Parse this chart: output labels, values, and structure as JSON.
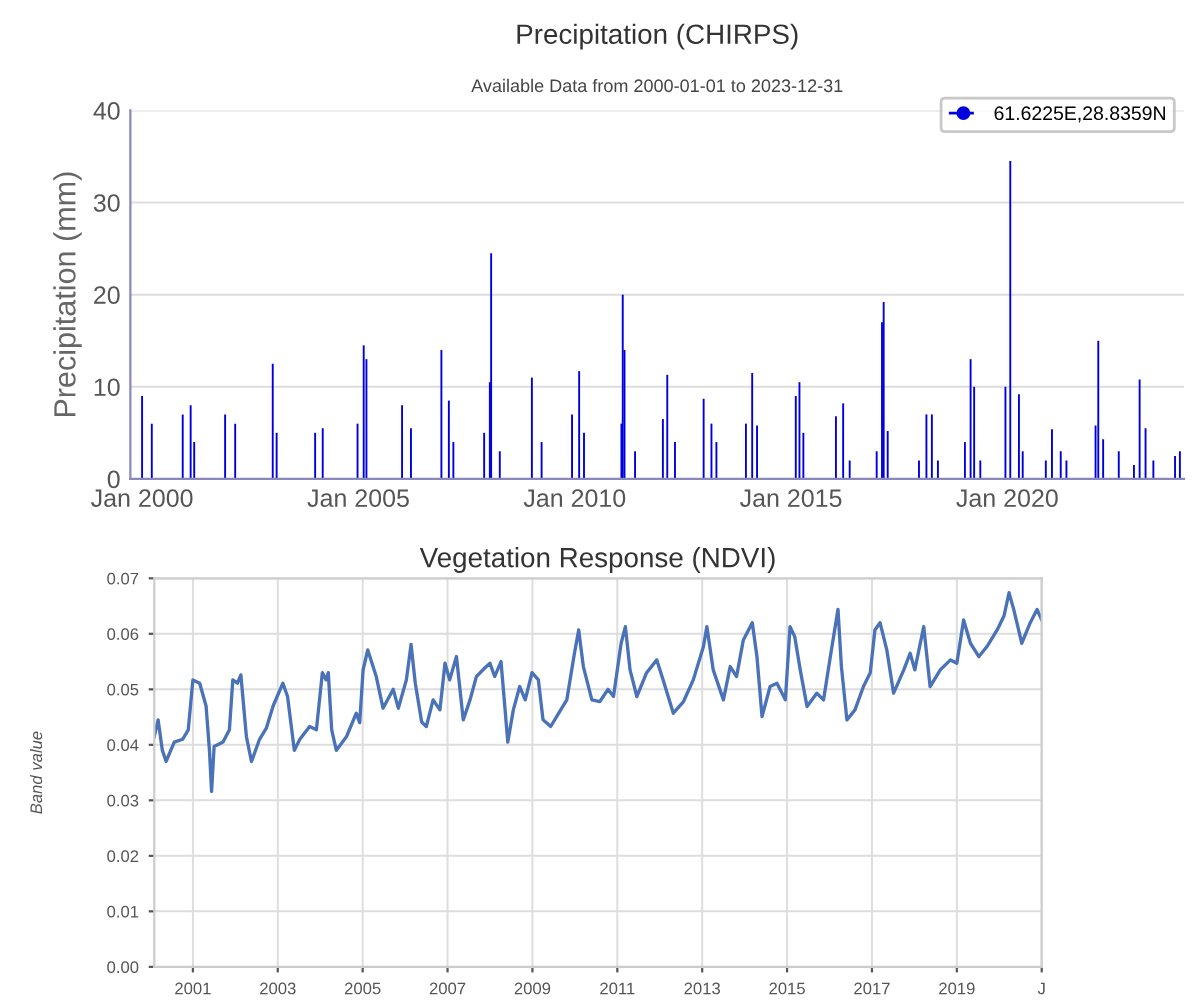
{
  "chart_data": [
    {
      "type": "bar",
      "title": "Precipitation (CHIRPS)",
      "subtitle": "Available Data from 2000-01-01 to 2023-12-31",
      "ylabel": "Precipitation (mm)",
      "x": [
        "2000-01-01",
        "2000-03-23",
        "2000-12-09",
        "2001-02-14",
        "2001-03-16",
        "2001-12-02",
        "2002-02-25",
        "2003-01-08",
        "2003-02-10",
        "2004-01-01",
        "2004-03-05",
        "2004-12-24",
        "2005-02-14",
        "2005-03-09",
        "2006-01-04",
        "2006-03-20",
        "2006-12-02",
        "2007-02-03",
        "2007-03-13",
        "2007-11-28",
        "2008-01-15",
        "2008-01-26",
        "2008-04-08",
        "2009-01-04",
        "2009-03-27",
        "2009-12-09",
        "2010-02-07",
        "2010-03-20",
        "2011-01-30",
        "2011-02-10",
        "2011-02-25",
        "2011-05-25",
        "2012-01-15",
        "2012-02-21",
        "2012-04-26",
        "2012-12-24",
        "2013-02-28",
        "2013-04-11",
        "2013-12-16",
        "2014-02-07",
        "2014-03-20",
        "2015-02-10",
        "2015-03-13",
        "2015-04-15",
        "2016-01-15",
        "2016-03-16",
        "2016-05-10",
        "2016-12-24",
        "2017-02-07",
        "2017-02-21",
        "2017-03-27",
        "2017-12-16",
        "2018-02-17",
        "2018-04-04",
        "2018-05-25",
        "2019-01-08",
        "2019-02-25",
        "2019-03-27",
        "2019-05-18",
        "2019-12-16",
        "2020-01-26",
        "2020-04-08",
        "2020-05-10",
        "2020-11-21",
        "2021-01-12",
        "2021-03-27",
        "2021-05-14",
        "2022-01-15",
        "2022-02-07",
        "2022-03-20",
        "2022-07-30",
        "2022-12-05",
        "2023-01-22",
        "2023-03-13",
        "2023-05-18",
        "2023-11-17",
        "2023-12-28"
      ],
      "series": [
        {
          "name": "61.6225E,28.8359N",
          "color": "#0000dd",
          "values": [
            9,
            6,
            7,
            8,
            4,
            7,
            6,
            12.5,
            5,
            5,
            5.5,
            6,
            14.5,
            13,
            8,
            5.5,
            14,
            8.5,
            4,
            5,
            10.5,
            24.5,
            3,
            11,
            4,
            7,
            11.7,
            5,
            6,
            20,
            14,
            3,
            6.5,
            11.3,
            4,
            8.7,
            6,
            4,
            6,
            11.5,
            5.8,
            9,
            10.5,
            5,
            6.8,
            8.2,
            2,
            3,
            17,
            19.2,
            5.2,
            2,
            7,
            7,
            2,
            4,
            13,
            10,
            2,
            10,
            34.5,
            9.2,
            3,
            2,
            5.4,
            3,
            2,
            5.8,
            15,
            4.3,
            3,
            1.5,
            10.8,
            5.5,
            2,
            2.5,
            3
          ]
        }
      ],
      "xlim": [
        "1999-09-24",
        "2024-02-01"
      ],
      "xticks": [
        {
          "value": "2000-01-01",
          "label": "Jan 2000"
        },
        {
          "value": "2005-01-01",
          "label": "Jan 2005"
        },
        {
          "value": "2010-01-01",
          "label": "Jan 2010"
        },
        {
          "value": "2015-01-01",
          "label": "Jan 2015"
        },
        {
          "value": "2020-01-01",
          "label": "Jan 2020"
        }
      ],
      "ylim": [
        0,
        40
      ],
      "yticks": [
        0,
        10,
        20,
        30,
        40
      ],
      "grid": "y",
      "legend": "top right",
      "marker": "circle"
    },
    {
      "type": "line",
      "title": "Vegetation Response (NDVI)",
      "ylabel": "Band value",
      "x": [
        2000.09,
        2000.18,
        2000.28,
        2000.37,
        2000.56,
        2000.76,
        2000.89,
        2001.0,
        2001.16,
        2001.31,
        2001.39,
        2001.44,
        2001.5,
        2001.71,
        2001.86,
        2001.94,
        2002.05,
        2002.13,
        2002.26,
        2002.38,
        2002.57,
        2002.73,
        2002.89,
        2003.12,
        2003.23,
        2003.39,
        2003.52,
        2003.75,
        2003.91,
        2004.05,
        2004.14,
        2004.19,
        2004.27,
        2004.38,
        2004.62,
        2004.85,
        2004.93,
        2005.01,
        2005.12,
        2005.32,
        2005.48,
        2005.72,
        2005.84,
        2006.03,
        2006.14,
        2006.24,
        2006.39,
        2006.5,
        2006.66,
        2006.82,
        2006.94,
        2007.05,
        2007.21,
        2007.37,
        2007.53,
        2007.68,
        2007.87,
        2008.0,
        2008.11,
        2008.26,
        2008.42,
        2008.55,
        2008.7,
        2008.83,
        2008.99,
        2009.14,
        2009.25,
        2009.43,
        2009.62,
        2009.81,
        2009.99,
        2010.09,
        2010.2,
        2010.4,
        2010.59,
        2010.78,
        2010.91,
        2011.09,
        2011.19,
        2011.3,
        2011.46,
        2011.69,
        2011.93,
        2012.08,
        2012.32,
        2012.56,
        2012.79,
        2013.03,
        2013.11,
        2013.26,
        2013.5,
        2013.66,
        2013.81,
        2013.97,
        2014.18,
        2014.29,
        2014.41,
        2014.6,
        2014.76,
        2014.96,
        2015.07,
        2015.18,
        2015.31,
        2015.47,
        2015.7,
        2015.86,
        2016.02,
        2016.2,
        2016.28,
        2016.41,
        2016.6,
        2016.8,
        2016.96,
        2017.07,
        2017.19,
        2017.35,
        2017.51,
        2017.75,
        2017.9,
        2018.01,
        2018.22,
        2018.37,
        2018.61,
        2018.85,
        2019.0,
        2019.16,
        2019.32,
        2019.52,
        2019.71,
        2019.95,
        2020.11,
        2020.23,
        2020.34,
        2020.53,
        2020.73,
        2020.89,
        2021.0
      ],
      "series": [
        {
          "color": "#4a72b8",
          "values": [
            0.0415,
            0.0445,
            0.039,
            0.037,
            0.0405,
            0.041,
            0.0427,
            0.0517,
            0.0511,
            0.047,
            0.039,
            0.0316,
            0.0397,
            0.0405,
            0.0427,
            0.0517,
            0.0511,
            0.0526,
            0.0415,
            0.037,
            0.041,
            0.043,
            0.047,
            0.0511,
            0.0487,
            0.039,
            0.041,
            0.0433,
            0.0427,
            0.053,
            0.0517,
            0.053,
            0.0427,
            0.039,
            0.0415,
            0.0457,
            0.044,
            0.0535,
            0.0571,
            0.0523,
            0.0466,
            0.05,
            0.0466,
            0.0517,
            0.0581,
            0.0511,
            0.0441,
            0.0433,
            0.0481,
            0.0463,
            0.0547,
            0.0517,
            0.0559,
            0.0445,
            0.0481,
            0.0523,
            0.0538,
            0.0547,
            0.0523,
            0.055,
            0.0405,
            0.0463,
            0.0505,
            0.0481,
            0.053,
            0.0517,
            0.0445,
            0.0433,
            0.0457,
            0.0481,
            0.0565,
            0.0607,
            0.0541,
            0.0481,
            0.0478,
            0.05,
            0.0487,
            0.0583,
            0.0613,
            0.0535,
            0.0487,
            0.053,
            0.0553,
            0.0517,
            0.0457,
            0.0478,
            0.0517,
            0.0577,
            0.0613,
            0.0535,
            0.0481,
            0.0541,
            0.0523,
            0.0589,
            0.062,
            0.0559,
            0.0451,
            0.0505,
            0.0511,
            0.0481,
            0.0613,
            0.0595,
            0.0535,
            0.0469,
            0.0493,
            0.0481,
            0.0559,
            0.0644,
            0.0541,
            0.0445,
            0.0463,
            0.0505,
            0.053,
            0.0607,
            0.062,
            0.0571,
            0.0493,
            0.0535,
            0.0565,
            0.0535,
            0.0613,
            0.0505,
            0.0535,
            0.0553,
            0.0547,
            0.0625,
            0.0583,
            0.0559,
            0.0577,
            0.0607,
            0.0632,
            0.0674,
            0.0644,
            0.0583,
            0.062,
            0.0644,
            0.0625
          ]
        }
      ],
      "xlim": [
        2000.09,
        2021.0
      ],
      "xticks": [
        2001,
        2003,
        2005,
        2007,
        2009,
        2011,
        2013,
        2015,
        2017,
        2019,
        {
          "value": 2021,
          "label": "J"
        }
      ],
      "ylim": [
        0,
        0.07
      ],
      "yticks": [
        {
          "value": 0,
          "label": "0.00"
        },
        {
          "value": 0.01,
          "label": "0.01"
        },
        {
          "value": 0.02,
          "label": "0.02"
        },
        {
          "value": 0.03,
          "label": "0.03"
        },
        {
          "value": 0.04,
          "label": "0.04"
        },
        {
          "value": 0.05,
          "label": "0.05"
        },
        {
          "value": 0.06,
          "label": "0.06"
        },
        {
          "value": 0.07,
          "label": "0.07"
        }
      ],
      "grid": true,
      "line_style": "solid"
    }
  ]
}
